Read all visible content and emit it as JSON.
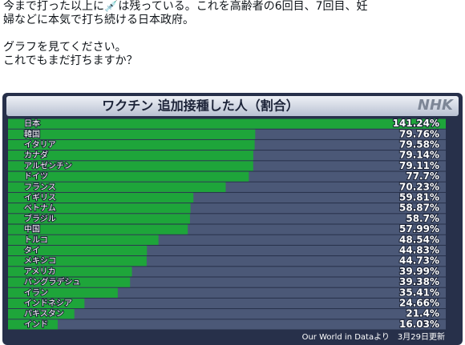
{
  "post": {
    "lines": [
      "今まで打った以上に💉は残っている。これを高齢者の6回目、7回目、妊",
      "婦などに本気で打ち続ける日本政府。",
      "グラフを見てください。",
      "これでもまだ打ちますか？"
    ]
  },
  "chart_data": {
    "type": "bar",
    "orientation": "horizontal",
    "title": "ワクチン 追加接種した人（割合）",
    "logo": "NHK",
    "source": "Our World in Dataより　3月29日更新",
    "categories": [
      "日本",
      "韓国",
      "イタリア",
      "カナダ",
      "アルゼンチン",
      "ドイツ",
      "フランス",
      "イギリス",
      "ベトナム",
      "ブラジル",
      "中国",
      "トルコ",
      "タイ",
      "メキシコ",
      "アメリカ",
      "バングラデシュ",
      "イラン",
      "インドネシア",
      "パキスタン",
      "インド"
    ],
    "values": [
      141.24,
      79.76,
      79.58,
      79.14,
      79.11,
      77.7,
      70.23,
      59.81,
      58.87,
      58.7,
      57.99,
      48.54,
      44.83,
      44.73,
      39.99,
      39.38,
      35.41,
      24.66,
      21.4,
      16.03
    ],
    "value_labels": [
      "141.24%",
      "79.76%",
      "79.58%",
      "79.14%",
      "79.11%",
      "77.7%",
      "70.23%",
      "59.81%",
      "58.87%",
      "58.7%",
      "57.99%",
      "48.54%",
      "44.83%",
      "44.73%",
      "39.99%",
      "39.38%",
      "35.41%",
      "24.66%",
      "21.4%",
      "16.03%"
    ],
    "color": "#1ea53a"
  }
}
